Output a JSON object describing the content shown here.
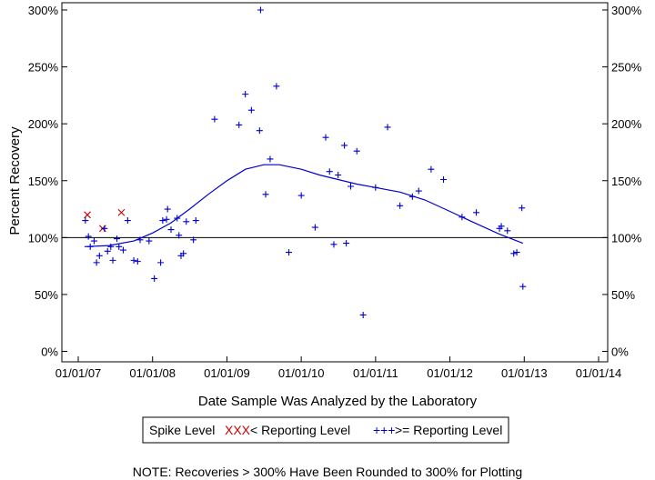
{
  "chart_data": {
    "type": "scatter",
    "xlabel": "Date Sample Was Analyzed by the Laboratory",
    "ylabel": "Percent Recovery",
    "xlim": [
      "2007-01-01",
      "2014-01-01"
    ],
    "ylim": [
      0,
      300
    ],
    "x_ticks": [
      "01/01/07",
      "01/01/08",
      "01/01/09",
      "01/01/10",
      "01/01/11",
      "01/01/12",
      "01/01/13",
      "01/01/14"
    ],
    "y_ticks": [
      "0%",
      "50%",
      "100%",
      "150%",
      "200%",
      "250%",
      "300%"
    ],
    "y_tick_values": [
      0,
      50,
      100,
      150,
      200,
      250,
      300
    ],
    "grid": false,
    "reference_line": {
      "y": 100
    },
    "legend": {
      "placement": "bottom",
      "title": "Spike Level",
      "entries": [
        {
          "marker": "XXX",
          "label": "< Reporting Level",
          "color": "#cc0000"
        },
        {
          "marker": "+++",
          "label": ">= Reporting Level",
          "color": "#0000cc"
        }
      ]
    },
    "note": "NOTE: Recoveries > 300% Have Been Rounded to 300% for Plotting",
    "series": [
      {
        "name": "< Reporting Level",
        "marker": "x",
        "color": "#cc0000",
        "points": [
          [
            "2007-02-15",
            120
          ],
          [
            "2007-05-01",
            108
          ],
          [
            "2007-08-01",
            122
          ]
        ]
      },
      {
        "name": ">= Reporting Level",
        "marker": "+",
        "color": "#0000cc",
        "points": [
          [
            "2007-02-05",
            115
          ],
          [
            "2007-02-20",
            101
          ],
          [
            "2007-03-01",
            92
          ],
          [
            "2007-03-20",
            97
          ],
          [
            "2007-04-01",
            78
          ],
          [
            "2007-04-15",
            84
          ],
          [
            "2007-05-10",
            108
          ],
          [
            "2007-05-25",
            88
          ],
          [
            "2007-06-10",
            92
          ],
          [
            "2007-06-20",
            80
          ],
          [
            "2007-07-10",
            99
          ],
          [
            "2007-07-20",
            92
          ],
          [
            "2007-08-10",
            89
          ],
          [
            "2007-09-01",
            115
          ],
          [
            "2007-10-01",
            80
          ],
          [
            "2007-10-20",
            79
          ],
          [
            "2007-11-01",
            98
          ],
          [
            "2007-12-15",
            97
          ],
          [
            "2008-01-10",
            64
          ],
          [
            "2008-02-10",
            78
          ],
          [
            "2008-02-20",
            115
          ],
          [
            "2008-03-10",
            116
          ],
          [
            "2008-03-15",
            125
          ],
          [
            "2008-04-01",
            107
          ],
          [
            "2008-05-01",
            117
          ],
          [
            "2008-05-10",
            102
          ],
          [
            "2008-05-20",
            84
          ],
          [
            "2008-06-01",
            86
          ],
          [
            "2008-06-15",
            114
          ],
          [
            "2008-07-20",
            98
          ],
          [
            "2008-08-01",
            115
          ],
          [
            "2008-11-01",
            204
          ],
          [
            "2009-03-01",
            199
          ],
          [
            "2009-04-01",
            226
          ],
          [
            "2009-05-01",
            212
          ],
          [
            "2009-06-10",
            194
          ],
          [
            "2009-06-15",
            300
          ],
          [
            "2009-07-10",
            138
          ],
          [
            "2009-08-01",
            169
          ],
          [
            "2009-09-01",
            233
          ],
          [
            "2009-11-01",
            87
          ],
          [
            "2010-01-01",
            137
          ],
          [
            "2010-03-10",
            109
          ],
          [
            "2010-05-01",
            188
          ],
          [
            "2010-05-20",
            158
          ],
          [
            "2010-06-10",
            94
          ],
          [
            "2010-07-01",
            155
          ],
          [
            "2010-08-01",
            181
          ],
          [
            "2010-08-10",
            95
          ],
          [
            "2010-09-01",
            145
          ],
          [
            "2010-10-01",
            176
          ],
          [
            "2010-11-01",
            32
          ],
          [
            "2011-01-01",
            144
          ],
          [
            "2011-03-01",
            197
          ],
          [
            "2011-05-01",
            128
          ],
          [
            "2011-07-01",
            136
          ],
          [
            "2011-08-01",
            141
          ],
          [
            "2011-10-01",
            160
          ],
          [
            "2011-12-01",
            151
          ],
          [
            "2012-03-01",
            118
          ],
          [
            "2012-05-10",
            122
          ],
          [
            "2012-09-01",
            108
          ],
          [
            "2012-09-10",
            110
          ],
          [
            "2012-10-10",
            106
          ],
          [
            "2012-11-10",
            86
          ],
          [
            "2012-11-25",
            87
          ],
          [
            "2012-12-20",
            126
          ],
          [
            "2012-12-25",
            57
          ]
        ]
      }
    ],
    "trend_line": {
      "color": "#0000cc",
      "points": [
        [
          "2007-02-01",
          92
        ],
        [
          "2007-06-01",
          93
        ],
        [
          "2007-10-01",
          97
        ],
        [
          "2008-01-01",
          104
        ],
        [
          "2008-04-01",
          113
        ],
        [
          "2008-07-01",
          125
        ],
        [
          "2008-10-01",
          138
        ],
        [
          "2009-01-01",
          150
        ],
        [
          "2009-04-01",
          160
        ],
        [
          "2009-07-01",
          164
        ],
        [
          "2009-09-15",
          164
        ],
        [
          "2010-01-01",
          160
        ],
        [
          "2010-04-01",
          155
        ],
        [
          "2010-07-01",
          151
        ],
        [
          "2010-10-01",
          147
        ],
        [
          "2011-01-01",
          144
        ],
        [
          "2011-05-01",
          140
        ],
        [
          "2011-09-01",
          133
        ],
        [
          "2012-01-01",
          123
        ],
        [
          "2012-05-01",
          113
        ],
        [
          "2012-09-01",
          103
        ],
        [
          "2012-12-25",
          95
        ]
      ]
    }
  }
}
